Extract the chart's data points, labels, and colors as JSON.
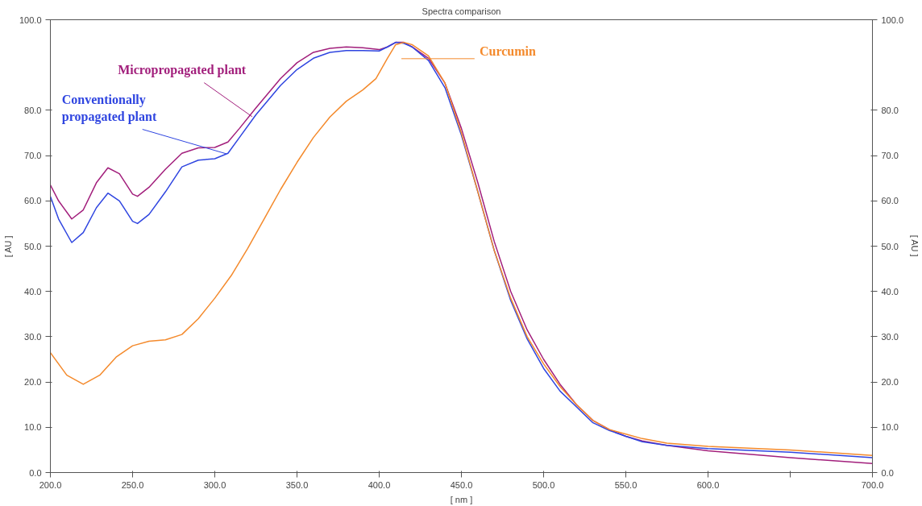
{
  "chart_data": {
    "type": "line",
    "title": "Spectra comparison",
    "xlabel": "[ nm ]",
    "ylabel": "[ AU ]",
    "y2label": "[ AU ]",
    "xlim": [
      200,
      700
    ],
    "xticks": [
      {
        "value": 200,
        "label": "200.0"
      },
      {
        "value": 250,
        "label": "250.0"
      },
      {
        "value": 300,
        "label": "300.0"
      },
      {
        "value": 350,
        "label": "350.0"
      },
      {
        "value": 400,
        "label": "400.0"
      },
      {
        "value": 450,
        "label": "450.0"
      },
      {
        "value": 500,
        "label": "500.0"
      },
      {
        "value": 550,
        "label": "550.0"
      },
      {
        "value": 600,
        "label": "600.0"
      },
      {
        "value": 650,
        "label": null
      },
      {
        "value": 700,
        "label": "700.0"
      }
    ],
    "ylim": [
      0,
      100
    ],
    "yticks": [
      {
        "value": 0,
        "label": "0.0"
      },
      {
        "value": 10,
        "label": "10.0"
      },
      {
        "value": 20,
        "label": "20.0"
      },
      {
        "value": 30,
        "label": "30.0"
      },
      {
        "value": 40,
        "label": "40.0"
      },
      {
        "value": 50,
        "label": "50.0"
      },
      {
        "value": 60,
        "label": "60.0"
      },
      {
        "value": 70,
        "label": "70.0"
      },
      {
        "value": 80,
        "label": "80.0"
      },
      {
        "value": 100,
        "label": "100.0"
      }
    ],
    "y2lim": [
      0,
      100
    ],
    "y2ticks": [
      {
        "value": 0,
        "label": "0.0"
      },
      {
        "value": 10,
        "label": "10.0"
      },
      {
        "value": 20,
        "label": "20.0"
      },
      {
        "value": 30,
        "label": "30.0"
      },
      {
        "value": 40,
        "label": "40.0"
      },
      {
        "value": 50,
        "label": "50.0"
      },
      {
        "value": 60,
        "label": "60.0"
      },
      {
        "value": 70,
        "label": "70.0"
      },
      {
        "value": 80,
        "label": "80.0"
      },
      {
        "value": 100,
        "label": "100.0"
      }
    ],
    "grid": false,
    "legend": false,
    "marker": "none",
    "line_style": "solid",
    "series": [
      {
        "name": "Micropropagated plant",
        "color": "#a21f7c",
        "x": [
          200,
          205,
          213,
          220,
          228,
          235,
          242,
          250,
          253,
          260,
          270,
          280,
          290,
          300,
          308,
          315,
          325,
          340,
          350,
          360,
          370,
          380,
          390,
          400,
          405,
          410,
          415,
          420,
          430,
          440,
          450,
          460,
          470,
          480,
          490,
          500,
          510,
          520,
          530,
          540,
          550,
          560,
          575,
          600,
          650,
          700
        ],
        "values": [
          63.5,
          60,
          56,
          58,
          64,
          67.3,
          66,
          61.5,
          61,
          63,
          67,
          70.5,
          71.7,
          71.8,
          73,
          76,
          80.5,
          87,
          90.5,
          92.8,
          93.7,
          94,
          93.8,
          93.4,
          94,
          95,
          95,
          94,
          91.5,
          86,
          76,
          64,
          51,
          40,
          31.5,
          25,
          19.5,
          15,
          11.5,
          9.5,
          8,
          7,
          6,
          4.8,
          3.3,
          2.0
        ]
      },
      {
        "name": "Conventionally propagated plant",
        "color": "#2f45e0",
        "x": [
          200,
          205,
          213,
          220,
          228,
          235,
          242,
          250,
          253,
          260,
          270,
          280,
          290,
          300,
          308,
          315,
          325,
          340,
          350,
          360,
          370,
          380,
          390,
          400,
          405,
          410,
          415,
          420,
          430,
          440,
          450,
          460,
          470,
          480,
          490,
          500,
          510,
          520,
          530,
          540,
          550,
          560,
          575,
          600,
          650,
          700
        ],
        "values": [
          61,
          56,
          50.8,
          53,
          58.5,
          61.7,
          60,
          55.5,
          55,
          57,
          62,
          67.5,
          69,
          69.3,
          70.5,
          74,
          79,
          85.5,
          89,
          91.5,
          92.8,
          93.2,
          93.2,
          93.1,
          94,
          95,
          94.8,
          94,
          91,
          85,
          74.5,
          62,
          49,
          38,
          29.5,
          23,
          18,
          14.5,
          11,
          9.3,
          8,
          6.8,
          6,
          5.3,
          4.5,
          3.3
        ]
      },
      {
        "name": "Curcumin",
        "color": "#f48a2c",
        "x": [
          200,
          210,
          220,
          230,
          240,
          250,
          260,
          270,
          280,
          290,
          300,
          310,
          320,
          330,
          340,
          350,
          360,
          370,
          380,
          390,
          398,
          405,
          410,
          415,
          420,
          430,
          440,
          450,
          460,
          470,
          480,
          490,
          500,
          510,
          520,
          530,
          540,
          550,
          560,
          575,
          600,
          650,
          700
        ],
        "values": [
          26.5,
          21.5,
          19.5,
          21.5,
          25.5,
          28,
          29,
          29.3,
          30.5,
          34,
          38.5,
          43.5,
          49.5,
          56,
          62.5,
          68.5,
          74,
          78.5,
          82,
          84.5,
          87,
          91.5,
          94.5,
          95,
          94.5,
          92,
          86,
          75,
          62,
          49,
          38.5,
          30,
          24,
          19,
          15,
          11.5,
          9.5,
          8.5,
          7.5,
          6.5,
          5.8,
          5,
          3.8
        ]
      }
    ]
  }
}
